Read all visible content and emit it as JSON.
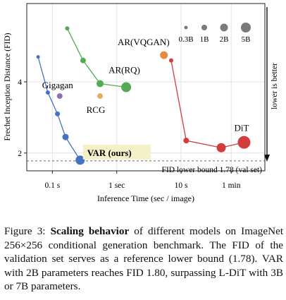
{
  "chart_data": {
    "type": "scatter",
    "xlabel": "Inference Time (sec / image)",
    "ylabel": "Frechet Inception Distance (FID)",
    "x_scale": "log",
    "x_ticks": [
      {
        "value": 0.1,
        "label": "0.1 s"
      },
      {
        "value": 1,
        "label": "1 sec"
      },
      {
        "value": 10,
        "label": "10 s"
      },
      {
        "value": 60,
        "label": "1 min"
      }
    ],
    "y_ticks": [
      {
        "value": 2,
        "label": "2"
      },
      {
        "value": 4,
        "label": "4"
      }
    ],
    "xlim": [
      0.04,
      200
    ],
    "ylim": [
      1.5,
      6.2
    ],
    "grid": true,
    "series": [
      {
        "name": "VAR (ours)",
        "color": "#4472c4",
        "x": [
          0.06,
          0.085,
          0.12,
          0.16,
          0.27
        ],
        "y": [
          4.7,
          3.7,
          3.1,
          2.45,
          1.8
        ]
      },
      {
        "name": "AR(RQ)",
        "color": "#55aa55",
        "x": [
          0.17,
          0.3,
          0.55,
          1.4
        ],
        "y": [
          5.5,
          4.6,
          3.95,
          3.85
        ]
      },
      {
        "name": "DiT",
        "color": "#d23c3c",
        "x": [
          7,
          12,
          42,
          95
        ],
        "y": [
          4.6,
          2.35,
          2.15,
          2.3
        ]
      }
    ],
    "singletons": [
      {
        "name": "AR(VQGAN)",
        "x": 5.4,
        "y": 4.75,
        "color": "#ea8a3f"
      },
      {
        "name": "Gigagan",
        "x": 0.13,
        "y": 3.6,
        "color": "#8a6fb8"
      },
      {
        "name": "RCG",
        "x": 0.55,
        "y": 3.6,
        "color": "#e0b060"
      }
    ],
    "size_legend": {
      "position": "top-right",
      "entries": [
        "0.3B",
        "1B",
        "2B",
        "5B"
      ],
      "color": "#7a7a7a"
    },
    "reference_line": {
      "value": 1.78,
      "label": "FID lower bound 1.78 (val set)"
    },
    "side_annotation": "lower is better",
    "highlight_label": "VAR (ours)"
  },
  "caption": {
    "fig_label": "Figure 3:",
    "bold_phrase": "Scaling behavior",
    "text": "of different models on ImageNet 256×256 conditional generation benchmark. The FID of the validation set serves as a reference lower bound (1.78). VAR with 2B parameters reaches FID 1.80, surpassing L-DiT with 3B or 7B parameters."
  }
}
